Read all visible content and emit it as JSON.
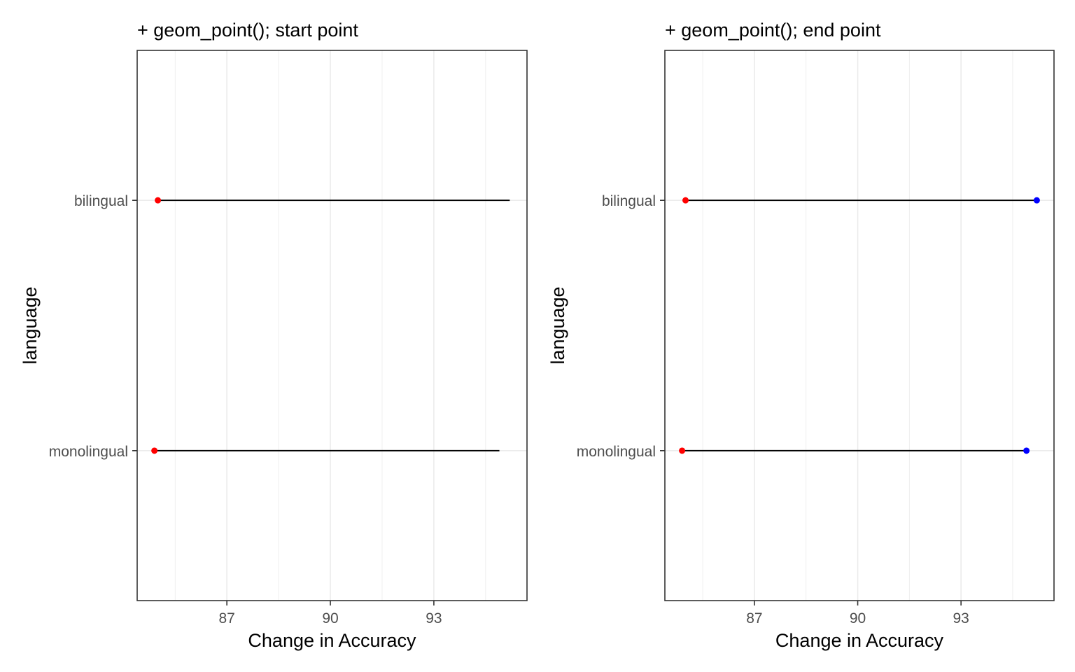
{
  "chart_data": [
    {
      "type": "dumbbell",
      "title": "+ geom_point(); start point",
      "xlabel": "Change in Accuracy",
      "ylabel": "language",
      "xlim": [
        84.4,
        95.7
      ],
      "x_ticks": [
        87,
        90,
        93
      ],
      "categories": [
        "bilingual",
        "monolingual"
      ],
      "segments": [
        {
          "category": "bilingual",
          "start": 85.0,
          "end": 95.2
        },
        {
          "category": "monolingual",
          "start": 84.9,
          "end": 94.9
        }
      ],
      "points": [
        {
          "category": "bilingual",
          "x": 85.0,
          "color": "#ff0000"
        },
        {
          "category": "monolingual",
          "x": 84.9,
          "color": "#ff0000"
        }
      ],
      "grid": true
    },
    {
      "type": "dumbbell",
      "title": "+ geom_point(); end point",
      "xlabel": "Change in Accuracy",
      "ylabel": "language",
      "xlim": [
        84.4,
        95.7
      ],
      "x_ticks": [
        87,
        90,
        93
      ],
      "categories": [
        "bilingual",
        "monolingual"
      ],
      "segments": [
        {
          "category": "bilingual",
          "start": 85.0,
          "end": 95.2
        },
        {
          "category": "monolingual",
          "start": 84.9,
          "end": 94.9
        }
      ],
      "points": [
        {
          "category": "bilingual",
          "x": 85.0,
          "color": "#ff0000"
        },
        {
          "category": "monolingual",
          "x": 84.9,
          "color": "#ff0000"
        },
        {
          "category": "bilingual",
          "x": 95.2,
          "color": "#0000ff"
        },
        {
          "category": "monolingual",
          "x": 94.9,
          "color": "#0000ff"
        }
      ],
      "grid": true
    }
  ]
}
